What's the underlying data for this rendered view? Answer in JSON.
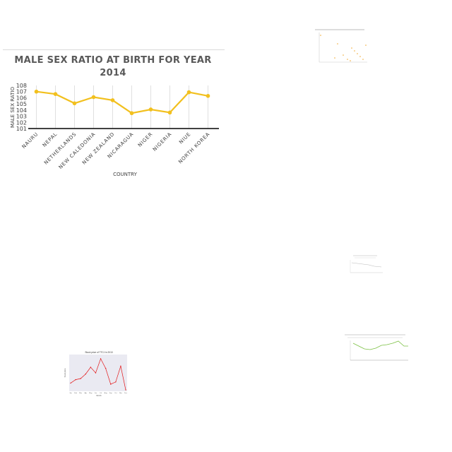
{
  "chart_data": [
    {
      "type": "line",
      "title": "MALE SEX RATIO AT BIRTH FOR YEAR 2014",
      "xlabel": "COUNTRY",
      "ylabel": "MALE SEX RATIO",
      "categories": [
        "NAURU",
        "NEPAL",
        "NETHERLANDS",
        "NEW CALEDONIA",
        "NEW ZEALAND",
        "NICARAGUA",
        "NIGER",
        "NIGERIA",
        "NIUE",
        "NORTH KOREA"
      ],
      "values": [
        107,
        106.6,
        105.1,
        106.1,
        105.6,
        103.5,
        104.1,
        103.6,
        106.9,
        106.3
      ],
      "ylim": [
        101,
        108
      ],
      "yticks": [
        "101",
        "102",
        "103",
        "104",
        "105",
        "106",
        "107",
        "108"
      ],
      "grid": "vertical",
      "color": "#f2c01e"
    },
    {
      "type": "line",
      "title": "Stock price of TTCJ in 2010",
      "xlabel": "Month",
      "ylabel": "Stock price",
      "categories": [
        "Jan",
        "Feb",
        "Mar",
        "Apr",
        "May",
        "Jun",
        "Jul",
        "Aug",
        "Sep",
        "Oct",
        "Nov",
        "Dec"
      ],
      "values": [
        12,
        18,
        20,
        28,
        40,
        30,
        55,
        38,
        10,
        14,
        42,
        0
      ],
      "color": "#e31a1c"
    }
  ]
}
